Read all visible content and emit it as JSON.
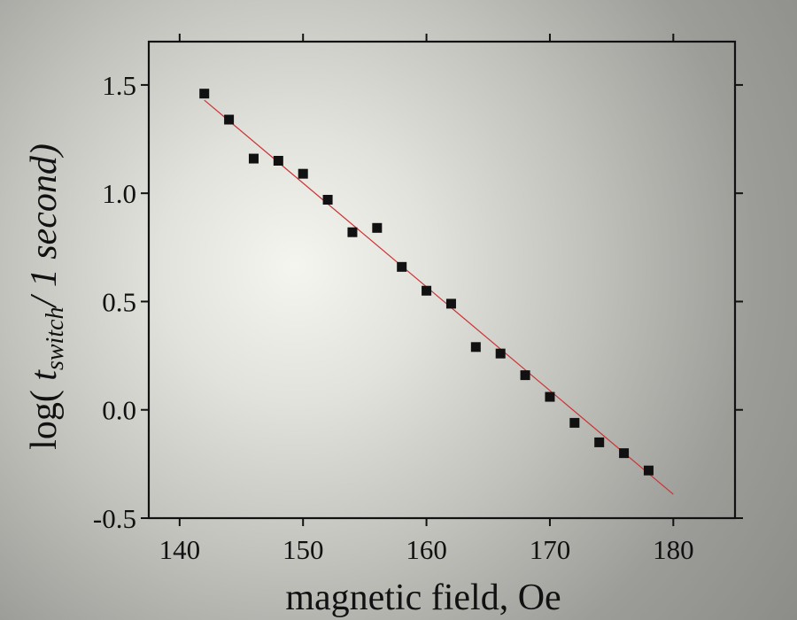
{
  "chart_data": {
    "type": "scatter",
    "xlabel": "magnetic field, Oe",
    "ylabel": {
      "prefix": "log( ",
      "var": "t",
      "subscript": "switch",
      "suffix": "/ 1 second)"
    },
    "xlim": [
      137.5,
      185
    ],
    "ylim": [
      -0.5,
      1.7
    ],
    "x_ticks": [
      140,
      150,
      160,
      170,
      180
    ],
    "y_ticks": [
      -0.5,
      0.0,
      0.5,
      1.0,
      1.5
    ],
    "x_tick_labels": [
      "140",
      "150",
      "160",
      "170",
      "180"
    ],
    "y_tick_labels": [
      "-0.5",
      "0.0",
      "0.5",
      "1.0",
      "1.5"
    ],
    "x": [
      142,
      144,
      146,
      148,
      150,
      152,
      154,
      156,
      158,
      160,
      162,
      164,
      166,
      168,
      170,
      172,
      174,
      176,
      178
    ],
    "y": [
      1.46,
      1.34,
      1.16,
      1.15,
      1.09,
      0.97,
      0.82,
      0.84,
      0.66,
      0.55,
      0.49,
      0.29,
      0.26,
      0.16,
      0.06,
      -0.06,
      -0.15,
      -0.2,
      -0.28
    ],
    "fit_line": {
      "x": [
        142,
        180
      ],
      "y": [
        1.43,
        -0.39
      ]
    },
    "colors": {
      "marker": "#111111",
      "fit_line": "#cc3333",
      "axes": "#111111"
    }
  }
}
